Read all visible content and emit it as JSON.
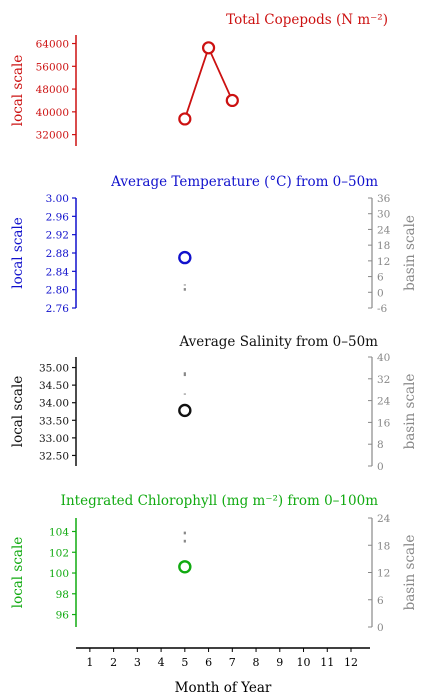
{
  "colors": {
    "red": "#cc1111",
    "blue": "#1111cc",
    "black": "#111111",
    "green": "#11aa11",
    "gray": "#888888"
  },
  "xaxis": {
    "label": "Month of Year",
    "ticks": [
      1,
      2,
      3,
      4,
      5,
      6,
      7,
      8,
      9,
      10,
      11,
      12
    ]
  },
  "chart_data": [
    {
      "type": "line",
      "title": "Total Copepods (N m⁻²)",
      "ylabel": "local scale",
      "yticks": [
        32000,
        40000,
        48000,
        56000,
        64000
      ],
      "ylim": [
        28000,
        67000
      ],
      "grid": false,
      "color": "red",
      "series": [
        {
          "x": [
            5,
            6,
            7
          ],
          "y": [
            37500,
            62500,
            44000
          ]
        }
      ]
    },
    {
      "type": "scatter",
      "title": "Average Temperature (°C) from 0–50m",
      "ylabel": "local scale",
      "y2label": "basin scale",
      "yticks": [
        "2.76",
        "2.80",
        "2.84",
        "2.88",
        "2.92",
        "2.96",
        "3.00"
      ],
      "ylim": [
        2.76,
        3.0
      ],
      "y2ticks": [
        -6,
        0,
        6,
        12,
        18,
        24,
        30,
        36
      ],
      "y2lim": [
        -6,
        36
      ],
      "color": "blue",
      "points": [
        {
          "x": 5,
          "y": 2.87
        }
      ],
      "basin_marks": [
        {
          "x": 5,
          "y2_low": 0.6,
          "y2_high": 1.6
        },
        {
          "x": 5,
          "y2_low": 2.6,
          "y2_high": 3.0
        }
      ]
    },
    {
      "type": "scatter",
      "title": "Average Salinity from 0–50m",
      "ylabel": "local scale",
      "y2label": "basin scale",
      "yticks": [
        "32.50",
        "33.00",
        "33.50",
        "34.00",
        "34.50",
        "35.00"
      ],
      "ylim": [
        32.2,
        35.3
      ],
      "y2ticks": [
        0,
        8,
        16,
        24,
        32,
        40
      ],
      "y2lim": [
        0,
        40
      ],
      "color": "black",
      "points": [
        {
          "x": 5,
          "y": 33.78
        }
      ],
      "basin_marks": [
        {
          "x": 5,
          "y2_low": 33.0,
          "y2_high": 34.4
        },
        {
          "x": 5,
          "y2_low": 26.2,
          "y2_high": 26.6
        }
      ]
    },
    {
      "type": "scatter",
      "title": "Integrated Chlorophyll (mg m⁻²) from 0–100m",
      "ylabel": "local scale",
      "y2label": "basin scale",
      "yticks": [
        "96",
        "98",
        "100",
        "102",
        "104"
      ],
      "ylim": [
        94.8,
        105.3
      ],
      "y2ticks": [
        0,
        6,
        12,
        18,
        24
      ],
      "y2lim": [
        0,
        24
      ],
      "color": "green",
      "points": [
        {
          "x": 5,
          "y": 100.6
        }
      ],
      "basin_marks": [
        {
          "x": 5,
          "y2_low": 20.4,
          "y2_high": 21.0
        },
        {
          "x": 5,
          "y2_low": 18.6,
          "y2_high": 19.2
        }
      ]
    }
  ]
}
